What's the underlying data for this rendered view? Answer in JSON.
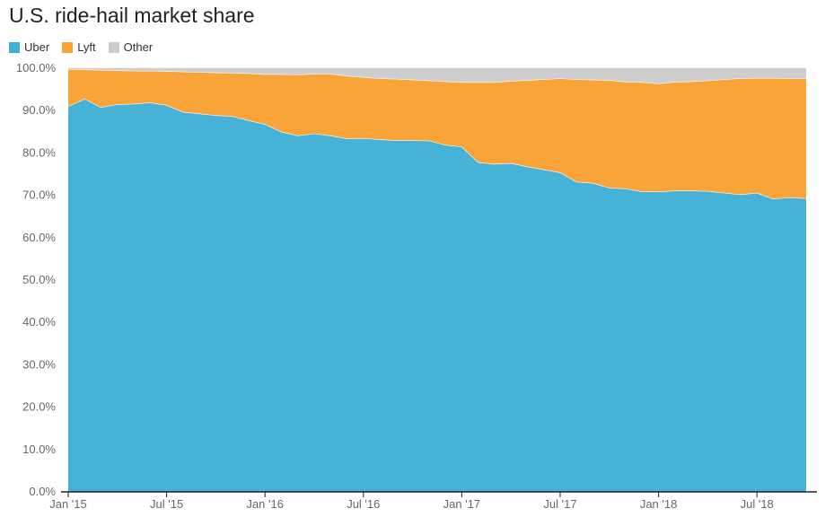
{
  "chart_data": {
    "type": "area",
    "title": "U.S. ride-hail market share",
    "stacked": true,
    "legend_position": "top-left",
    "grid": true,
    "ylim": [
      0,
      100
    ],
    "y_ticks": [
      "0.0%",
      "10.0%",
      "20.0%",
      "30.0%",
      "40.0%",
      "50.0%",
      "60.0%",
      "70.0%",
      "80.0%",
      "90.0%",
      "100.0%"
    ],
    "x_ticks": [
      "Jan '15",
      "Jul '15",
      "Jan '16",
      "Jul '16",
      "Jan '17",
      "Jul '17",
      "Jan '18",
      "Jul '18"
    ],
    "x": [
      "2015-01",
      "2015-02",
      "2015-03",
      "2015-04",
      "2015-05",
      "2015-06",
      "2015-07",
      "2015-08",
      "2015-09",
      "2015-10",
      "2015-11",
      "2015-12",
      "2016-01",
      "2016-02",
      "2016-03",
      "2016-04",
      "2016-05",
      "2016-06",
      "2016-07",
      "2016-08",
      "2016-09",
      "2016-10",
      "2016-11",
      "2016-12",
      "2017-01",
      "2017-02",
      "2017-03",
      "2017-04",
      "2017-05",
      "2017-06",
      "2017-07",
      "2017-08",
      "2017-09",
      "2017-10",
      "2017-11",
      "2017-12",
      "2018-01",
      "2018-02",
      "2018-03",
      "2018-04",
      "2018-05",
      "2018-06",
      "2018-07",
      "2018-08",
      "2018-09",
      "2018-10"
    ],
    "series": [
      {
        "name": "Uber",
        "color": "#40afd6",
        "values": [
          91.0,
          92.8,
          90.8,
          91.5,
          91.6,
          91.9,
          91.3,
          89.7,
          89.3,
          88.9,
          88.7,
          87.7,
          86.8,
          85.0,
          84.1,
          84.6,
          84.1,
          83.4,
          83.5,
          83.2,
          83.0,
          83.0,
          82.9,
          81.9,
          81.5,
          77.8,
          77.4,
          77.6,
          76.8,
          76.1,
          75.4,
          73.2,
          72.9,
          71.8,
          71.6,
          70.9,
          70.9,
          71.1,
          71.1,
          71.0,
          70.6,
          70.2,
          70.6,
          69.2,
          69.5,
          69.3
        ]
      },
      {
        "name": "Lyft",
        "color": "#f9a132",
        "values": [
          8.8,
          6.9,
          8.8,
          8.0,
          7.8,
          7.5,
          8.0,
          9.5,
          9.8,
          10.1,
          10.2,
          11.1,
          11.8,
          13.6,
          14.4,
          14.1,
          14.6,
          14.8,
          14.4,
          14.4,
          14.5,
          14.3,
          14.2,
          15.0,
          15.2,
          18.9,
          19.3,
          19.4,
          20.4,
          21.3,
          22.2,
          24.2,
          24.4,
          25.4,
          25.2,
          25.8,
          25.5,
          25.7,
          25.8,
          26.1,
          26.8,
          27.4,
          27.1,
          28.5,
          28.1,
          28.3
        ]
      },
      {
        "name": "Other",
        "color": "#cccccc",
        "values": [
          0.2,
          0.3,
          0.4,
          0.5,
          0.6,
          0.6,
          0.7,
          0.8,
          0.9,
          1.0,
          1.1,
          1.2,
          1.4,
          1.4,
          1.5,
          1.3,
          1.3,
          1.8,
          2.1,
          2.4,
          2.5,
          2.7,
          2.9,
          3.1,
          3.3,
          3.3,
          3.3,
          3.0,
          2.8,
          2.6,
          2.4,
          2.6,
          2.7,
          2.8,
          3.2,
          3.3,
          3.6,
          3.2,
          3.1,
          2.9,
          2.6,
          2.4,
          2.3,
          2.3,
          2.4,
          2.4
        ]
      }
    ]
  }
}
